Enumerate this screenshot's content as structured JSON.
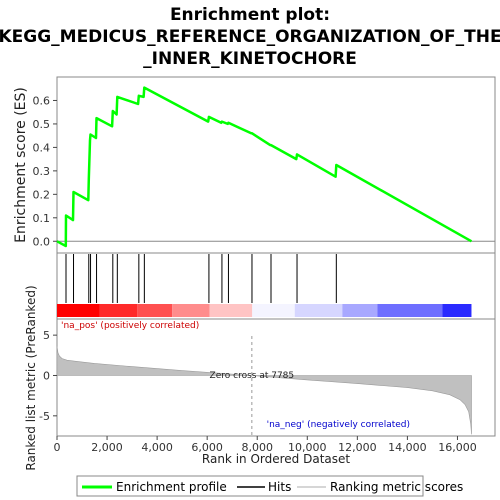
{
  "chart_data": {
    "type": "line",
    "title_lines": [
      "Enrichment plot:",
      "KEGG_MEDICUS_REFERENCE_ORGANIZATION_OF_THE",
      "_INNER_KINETOCHORE"
    ],
    "es_panel": {
      "ylabel": "Enrichment score (ES)",
      "ylim": [
        -0.05,
        0.7
      ],
      "yticks": [
        "0.0",
        "0.1",
        "0.2",
        "0.3",
        "0.4",
        "0.5",
        "0.6"
      ],
      "ytick_values": [
        0.0,
        0.1,
        0.2,
        0.3,
        0.4,
        0.5,
        0.6
      ],
      "series": [
        {
          "name": "Enrichment profile",
          "color": "#00ff00",
          "x": [
            0,
            350,
            360,
            640,
            660,
            1250,
            1270,
            1320,
            1340,
            1560,
            1580,
            2200,
            2230,
            2380,
            2410,
            3240,
            3270,
            3460,
            3490,
            6040,
            6070,
            6560,
            6590,
            6820,
            6850,
            7760,
            7790,
            8520,
            8550,
            9560,
            9590,
            11130,
            11160,
            16560
          ],
          "y": [
            0.0,
            -0.02,
            0.11,
            0.09,
            0.21,
            0.175,
            0.265,
            0.43,
            0.455,
            0.44,
            0.525,
            0.49,
            0.555,
            0.54,
            0.615,
            0.585,
            0.62,
            0.615,
            0.655,
            0.51,
            0.53,
            0.505,
            0.51,
            0.5,
            0.505,
            0.46,
            0.46,
            0.41,
            0.41,
            0.35,
            0.37,
            0.275,
            0.325,
            0.0
          ]
        }
      ]
    },
    "hits": {
      "name": "Hits",
      "color": "#000000",
      "x": [
        360,
        660,
        1270,
        1340,
        1580,
        2230,
        2410,
        3270,
        3490,
        6070,
        6590,
        6850,
        7790,
        8550,
        9590,
        11160
      ]
    },
    "heatmap_bar": {
      "segments": [
        {
          "x0": 0,
          "x1": 1700,
          "color": "#ff0000"
        },
        {
          "x0": 1700,
          "x1": 3200,
          "color": "#ff2a2a"
        },
        {
          "x0": 3200,
          "x1": 4600,
          "color": "#ff5050"
        },
        {
          "x0": 4600,
          "x1": 6100,
          "color": "#ff8c8c"
        },
        {
          "x0": 6100,
          "x1": 7800,
          "color": "#ffc4c4"
        },
        {
          "x0": 7800,
          "x1": 9500,
          "color": "#f4f4ff"
        },
        {
          "x0": 9500,
          "x1": 11400,
          "color": "#d6d6ff"
        },
        {
          "x0": 11400,
          "x1": 12800,
          "color": "#a8a8ff"
        },
        {
          "x0": 12800,
          "x1": 15400,
          "color": "#6e6eff"
        },
        {
          "x0": 15400,
          "x1": 16560,
          "color": "#2a2aff"
        }
      ]
    },
    "ranked_panel": {
      "ylabel": "Ranked list metric (PreRanked)",
      "ylim": [
        -7.5,
        7.0
      ],
      "yticks": [
        "5",
        "0",
        "-5"
      ],
      "ytick_values": [
        5,
        0,
        -5
      ],
      "metric_color": "#c0c0c0",
      "metric_x": [
        0,
        40,
        100,
        200,
        400,
        800,
        1500,
        3000,
        5000,
        7785,
        10000,
        12000,
        14000,
        15000,
        15700,
        16100,
        16300,
        16450,
        16530,
        16560
      ],
      "metric_y": [
        3.6,
        2.8,
        2.4,
        2.1,
        1.9,
        1.75,
        1.5,
        1.1,
        0.6,
        0.0,
        -0.55,
        -1.0,
        -1.5,
        -1.9,
        -2.4,
        -3.0,
        -3.6,
        -4.5,
        -6.0,
        -7.3
      ],
      "zero_cross_label": "Zero cross at 7785",
      "zero_cross": 7785,
      "pos_label": "'na_pos' (positively correlated)",
      "neg_label": "'na_neg' (negatively correlated)"
    },
    "xlabel": "Rank in Ordered Dataset",
    "xlim": [
      0,
      17500
    ],
    "xticks": [
      "0",
      "2,000",
      "4,000",
      "6,000",
      "8,000",
      "10,000",
      "12,000",
      "14,000",
      "16,000"
    ],
    "xtick_values": [
      0,
      2000,
      4000,
      6000,
      8000,
      10000,
      12000,
      14000,
      16000
    ],
    "legend": [
      {
        "label": "Enrichment profile",
        "color": "#00ff00"
      },
      {
        "label": "Hits",
        "color": "#000000"
      },
      {
        "label": "Ranking metric scores",
        "color": "#c8c8c8"
      }
    ]
  }
}
